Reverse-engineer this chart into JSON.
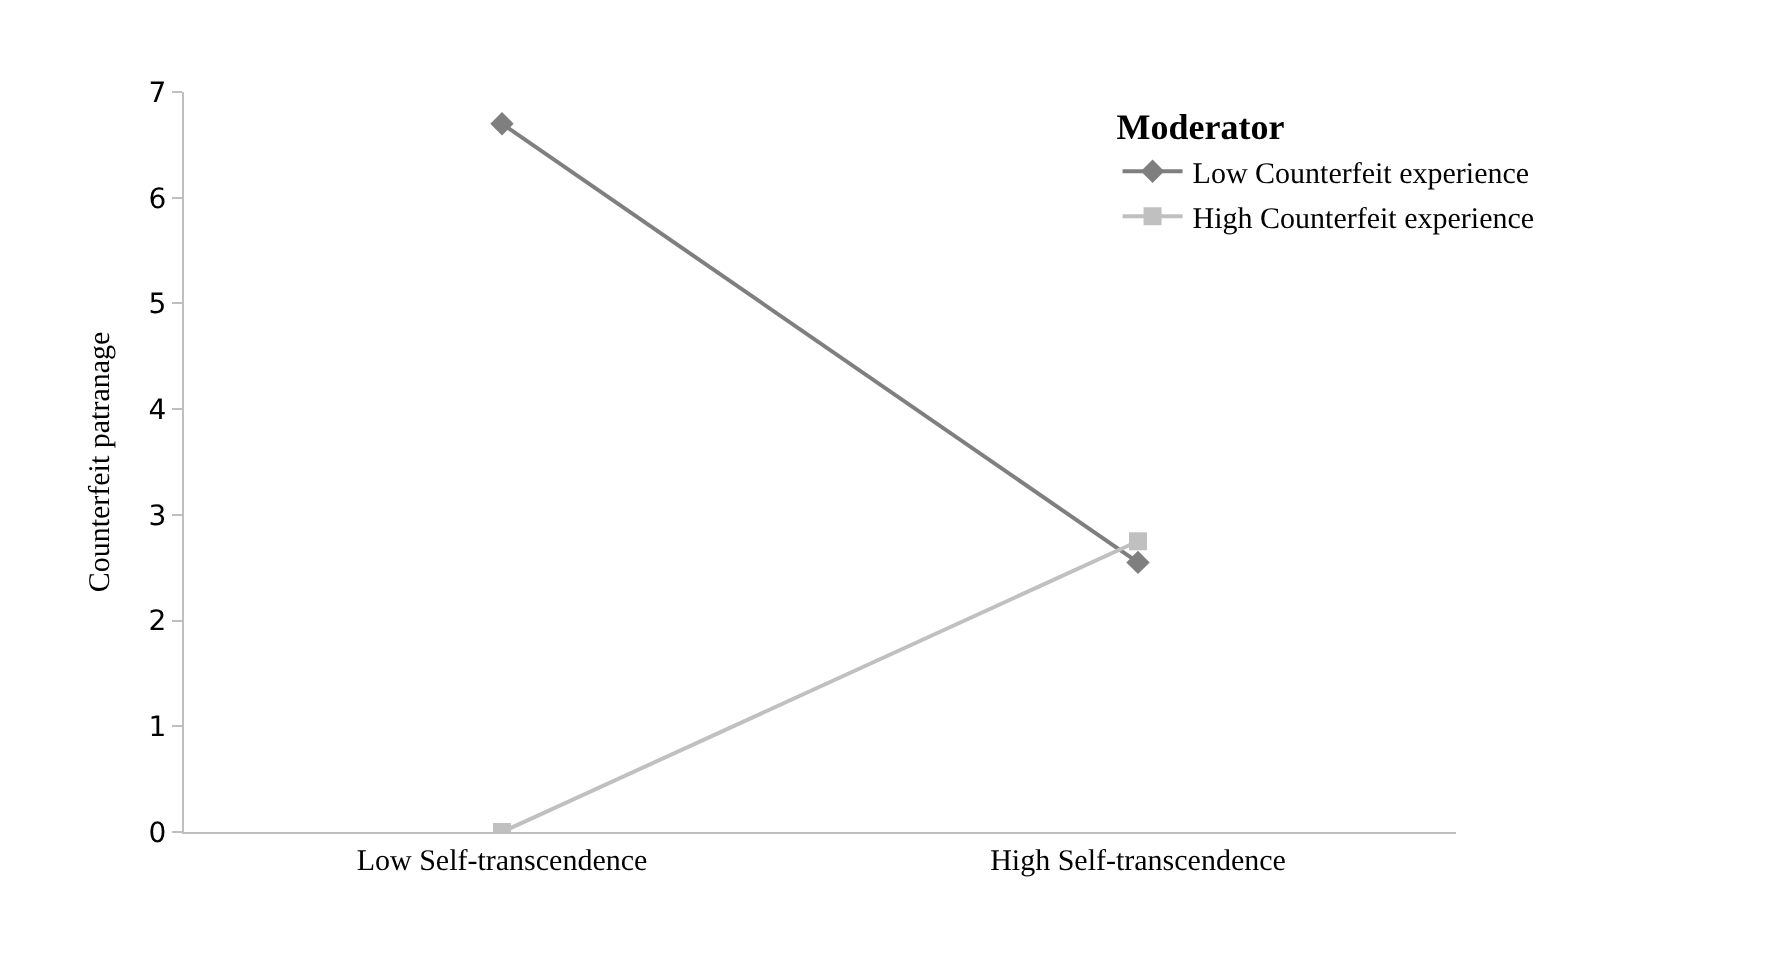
{
  "chart_data": {
    "type": "line",
    "ylabel": "Counterfeit patranage",
    "legend_title": "Moderator",
    "categories": [
      "Low Self-transcendence",
      "High Self-transcendence"
    ],
    "series": [
      {
        "name": "Low Counterfeit experience",
        "color": "#7f7f7f",
        "marker": "diamond",
        "values": [
          6.7,
          2.55
        ]
      },
      {
        "name": "High Counterfeit experience",
        "color": "#c0c0c0",
        "marker": "square",
        "values": [
          0,
          2.75
        ]
      }
    ],
    "ylim": [
      0,
      7
    ],
    "yticks": [
      0,
      1,
      2,
      3,
      4,
      5,
      6,
      7
    ],
    "legend": "top right",
    "line_style": "solid"
  }
}
